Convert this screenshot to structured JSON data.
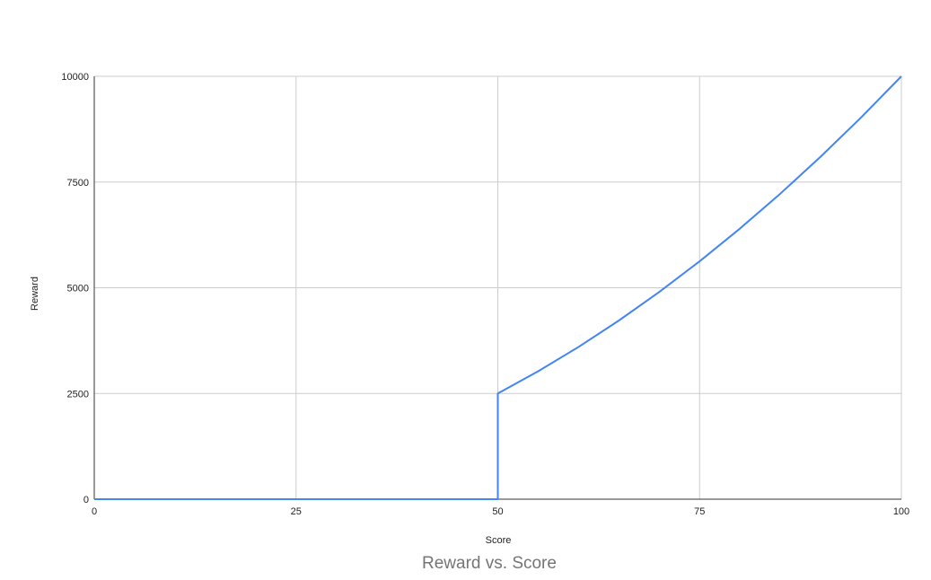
{
  "chart_data": {
    "type": "line",
    "title": "Reward vs. Score",
    "xlabel": "Score",
    "ylabel": "Reward",
    "xlim": [
      0,
      100
    ],
    "ylim": [
      0,
      10000
    ],
    "x_ticks": [
      "0",
      "25",
      "50",
      "75",
      "100"
    ],
    "y_ticks": [
      "0",
      "2500",
      "5000",
      "7500",
      "10000"
    ],
    "grid": true,
    "legend": "none",
    "colors": {
      "line": "#4285f4",
      "grid": "#cccccc",
      "axis": "#333333"
    },
    "series": [
      {
        "color": "#4285f4",
        "points": [
          [
            0,
            0
          ],
          [
            50,
            0
          ],
          [
            50,
            2500
          ],
          [
            55,
            3025
          ],
          [
            60,
            3600
          ],
          [
            65,
            4225
          ],
          [
            70,
            4900
          ],
          [
            75,
            5625
          ],
          [
            80,
            6400
          ],
          [
            85,
            7225
          ],
          [
            90,
            8100
          ],
          [
            95,
            9025
          ],
          [
            100,
            10000
          ]
        ]
      }
    ]
  }
}
